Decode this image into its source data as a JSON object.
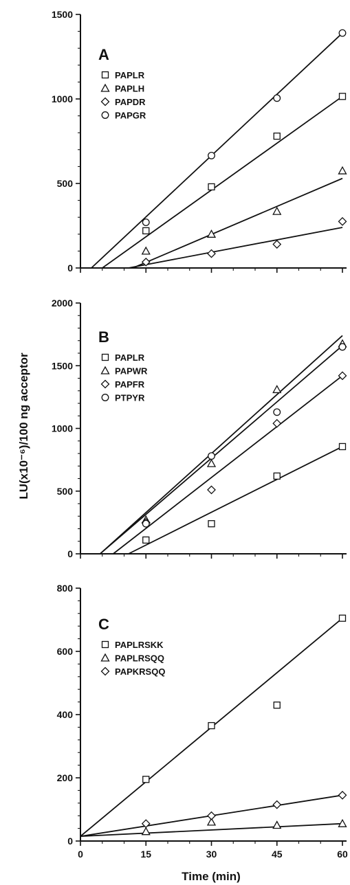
{
  "chart_data": [
    {
      "type": "scatter",
      "panel_label": "A",
      "xlim": [
        0,
        60
      ],
      "ylim": [
        0,
        1500
      ],
      "x_ticks": [
        0,
        15,
        30,
        45,
        60
      ],
      "y_ticks": [
        0,
        500,
        1000,
        1500
      ],
      "y_tick_labels": [
        "0",
        "500",
        "1000",
        "1500"
      ],
      "legend_position": "top-left",
      "grid": false,
      "series": [
        {
          "name": "PAPLR",
          "marker": "square",
          "x": [
            15,
            30,
            45,
            60
          ],
          "y": [
            220,
            480,
            780,
            1015
          ],
          "fit": [
            [
              5,
              0
            ],
            [
              60,
              1015
            ]
          ]
        },
        {
          "name": "PAPLH",
          "marker": "triangle",
          "x": [
            15,
            30,
            45,
            60
          ],
          "y": [
            100,
            200,
            335,
            575
          ],
          "fit": [
            [
              12,
              0
            ],
            [
              60,
              530
            ]
          ]
        },
        {
          "name": "PAPDR",
          "marker": "diamond",
          "x": [
            15,
            30,
            45,
            60
          ],
          "y": [
            35,
            85,
            140,
            275
          ],
          "fit": [
            [
              11,
              0
            ],
            [
              60,
              240
            ]
          ]
        },
        {
          "name": "PAPGR",
          "marker": "circle",
          "x": [
            15,
            30,
            45,
            60
          ],
          "y": [
            270,
            665,
            1005,
            1390
          ],
          "fit": [
            [
              2.5,
              0
            ],
            [
              60,
              1390
            ]
          ]
        }
      ]
    },
    {
      "type": "scatter",
      "panel_label": "B",
      "xlim": [
        0,
        60
      ],
      "ylim": [
        0,
        2000
      ],
      "x_ticks": [
        0,
        15,
        30,
        45,
        60
      ],
      "y_ticks": [
        0,
        500,
        1000,
        1500,
        2000
      ],
      "y_tick_labels": [
        "0",
        "500",
        "1000",
        "1500",
        "2000"
      ],
      "legend_position": "top-left",
      "grid": false,
      "series": [
        {
          "name": "PAPLR",
          "marker": "square",
          "x": [
            15,
            30,
            45,
            60
          ],
          "y": [
            110,
            240,
            620,
            855
          ],
          "fit": [
            [
              11,
              0
            ],
            [
              60,
              855
            ]
          ]
        },
        {
          "name": "PAPWR",
          "marker": "triangle",
          "x": [
            15,
            30,
            45,
            60
          ],
          "y": [
            270,
            720,
            1310,
            1675
          ],
          "fit": [
            [
              4.5,
              0
            ],
            [
              60,
              1740
            ]
          ]
        },
        {
          "name": "PAPFR",
          "marker": "diamond",
          "x": [
            15,
            30,
            45,
            60
          ],
          "y": [
            250,
            510,
            1040,
            1420
          ],
          "fit": [
            [
              7.5,
              0
            ],
            [
              60,
              1420
            ]
          ]
        },
        {
          "name": "PTPYR",
          "marker": "circle",
          "x": [
            15,
            30,
            45,
            60
          ],
          "y": [
            240,
            780,
            1130,
            1650
          ],
          "fit": [
            [
              4.5,
              0
            ],
            [
              60,
              1660
            ]
          ]
        }
      ]
    },
    {
      "type": "scatter",
      "panel_label": "C",
      "xlabel": "Time (min)",
      "xlim": [
        0,
        60
      ],
      "ylim": [
        0,
        800
      ],
      "x_ticks": [
        0,
        15,
        30,
        45,
        60
      ],
      "x_tick_labels": [
        "0",
        "15",
        "30",
        "45",
        "60"
      ],
      "y_ticks": [
        0,
        200,
        400,
        600,
        800
      ],
      "y_tick_labels": [
        "0",
        "200",
        "400",
        "600",
        "800"
      ],
      "legend_position": "top-left",
      "grid": false,
      "series": [
        {
          "name": "PAPLRSKK",
          "marker": "square",
          "x": [
            15,
            30,
            45,
            60
          ],
          "y": [
            195,
            365,
            430,
            705
          ],
          "fit": [
            [
              0,
              15
            ],
            [
              60,
              705
            ]
          ]
        },
        {
          "name": "PAPLRSQQ",
          "marker": "triangle",
          "x": [
            15,
            30,
            45,
            60
          ],
          "y": [
            30,
            60,
            50,
            55
          ],
          "fit": [
            [
              0,
              15
            ],
            [
              60,
              55
            ]
          ]
        },
        {
          "name": "PAPKRSQQ",
          "marker": "diamond",
          "x": [
            15,
            30,
            45,
            60
          ],
          "y": [
            55,
            80,
            115,
            145
          ],
          "fit": [
            [
              0,
              15
            ],
            [
              60,
              145
            ]
          ]
        }
      ]
    }
  ],
  "shared_ylabel": "LU(x10⁻⁶)/100 ng acceptor",
  "colors": {
    "ink": "#111111",
    "background": "#ffffff"
  }
}
